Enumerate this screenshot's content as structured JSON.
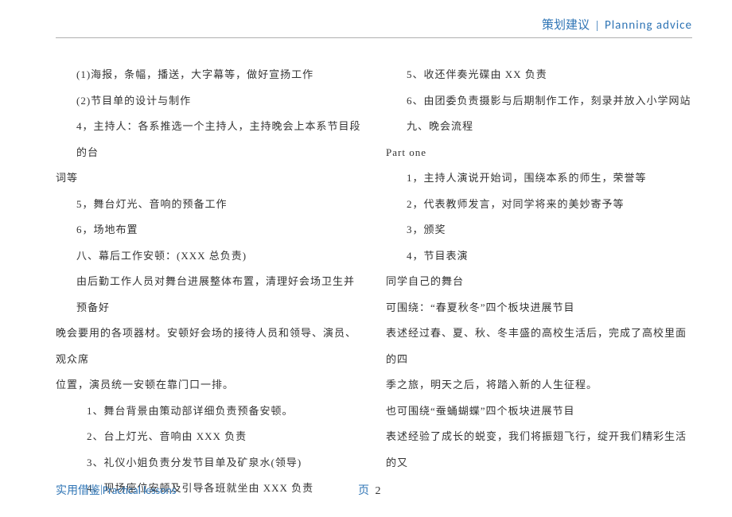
{
  "header": {
    "title_cn": "策划建议",
    "separator": "|",
    "title_en": "Planning  advice"
  },
  "colors": {
    "accent": "#2e74b5",
    "text": "#333333",
    "border": "#b0b0b0"
  },
  "left_column": [
    {
      "text": "(1)海报，条幅，播送，大字幕等，做好宣扬工作",
      "indent": 1
    },
    {
      "text": "(2)节目单的设计与制作",
      "indent": 1
    },
    {
      "text": "4，主持人：各系推选一个主持人，主持晚会上本系节目段的台",
      "indent": 1
    },
    {
      "text": "词等",
      "indent": 0
    },
    {
      "text": "5，舞台灯光、音响的预备工作",
      "indent": 1
    },
    {
      "text": "6，场地布置",
      "indent": 1
    },
    {
      "text": "八、幕后工作安顿：(XXX 总负责)",
      "indent": 1
    },
    {
      "text": "由后勤工作人员对舞台进展整体布置，清理好会场卫生并预备好",
      "indent": 1
    },
    {
      "text": "晚会要用的各项器材。安顿好会场的接待人员和领导、演员、观众席",
      "indent": 0
    },
    {
      "text": "位置，演员统一安顿在靠门口一排。",
      "indent": 0
    },
    {
      "text": "1、舞台背景由策动部详细负责预备安顿。",
      "indent": 2
    },
    {
      "text": "2、台上灯光、音响由 XXX 负责",
      "indent": 2
    },
    {
      "text": "3、礼仪小姐负责分发节目单及矿泉水(领导)",
      "indent": 2
    },
    {
      "text": "4、现场座位安顿及引导各班就坐由 XXX 负责",
      "indent": 2
    }
  ],
  "right_column": [
    {
      "text": "5、收还伴奏光碟由 XX 负责",
      "indent": 1
    },
    {
      "text": "6、由团委负责摄影与后期制作工作，刻录并放入小学网站",
      "indent": 1
    },
    {
      "text": "九、晚会流程",
      "indent": 1
    },
    {
      "text": "Part one",
      "indent": 0
    },
    {
      "text": "1，主持人演说开始词，围绕本系的师生，荣誉等",
      "indent": 1
    },
    {
      "text": "2，代表教师发言，对同学将来的美妙寄予等",
      "indent": 1
    },
    {
      "text": "3，颁奖",
      "indent": 1
    },
    {
      "text": "4，节目表演",
      "indent": 1
    },
    {
      "text": "同学自己的舞台",
      "indent": 0
    },
    {
      "text": "可围绕：“春夏秋冬”四个板块进展节目",
      "indent": 0
    },
    {
      "text": "表述经过春、夏、秋、冬丰盛的高校生活后，完成了高校里面的四",
      "indent": 0
    },
    {
      "text": "季之旅，明天之后，将踏入新的人生征程。",
      "indent": 0
    },
    {
      "text": "也可围绕“蚕蛹蝴蝶”四个板块进展节目",
      "indent": 0
    },
    {
      "text": "表述经验了成长的蜕变，我们将振翅飞行，绽开我们精彩生活的又",
      "indent": 0
    }
  ],
  "footer": {
    "left_cn": "实用借鉴",
    "left_sep": "|",
    "left_en": " Practical lessons",
    "page_label": "页",
    "page_number": "2"
  }
}
